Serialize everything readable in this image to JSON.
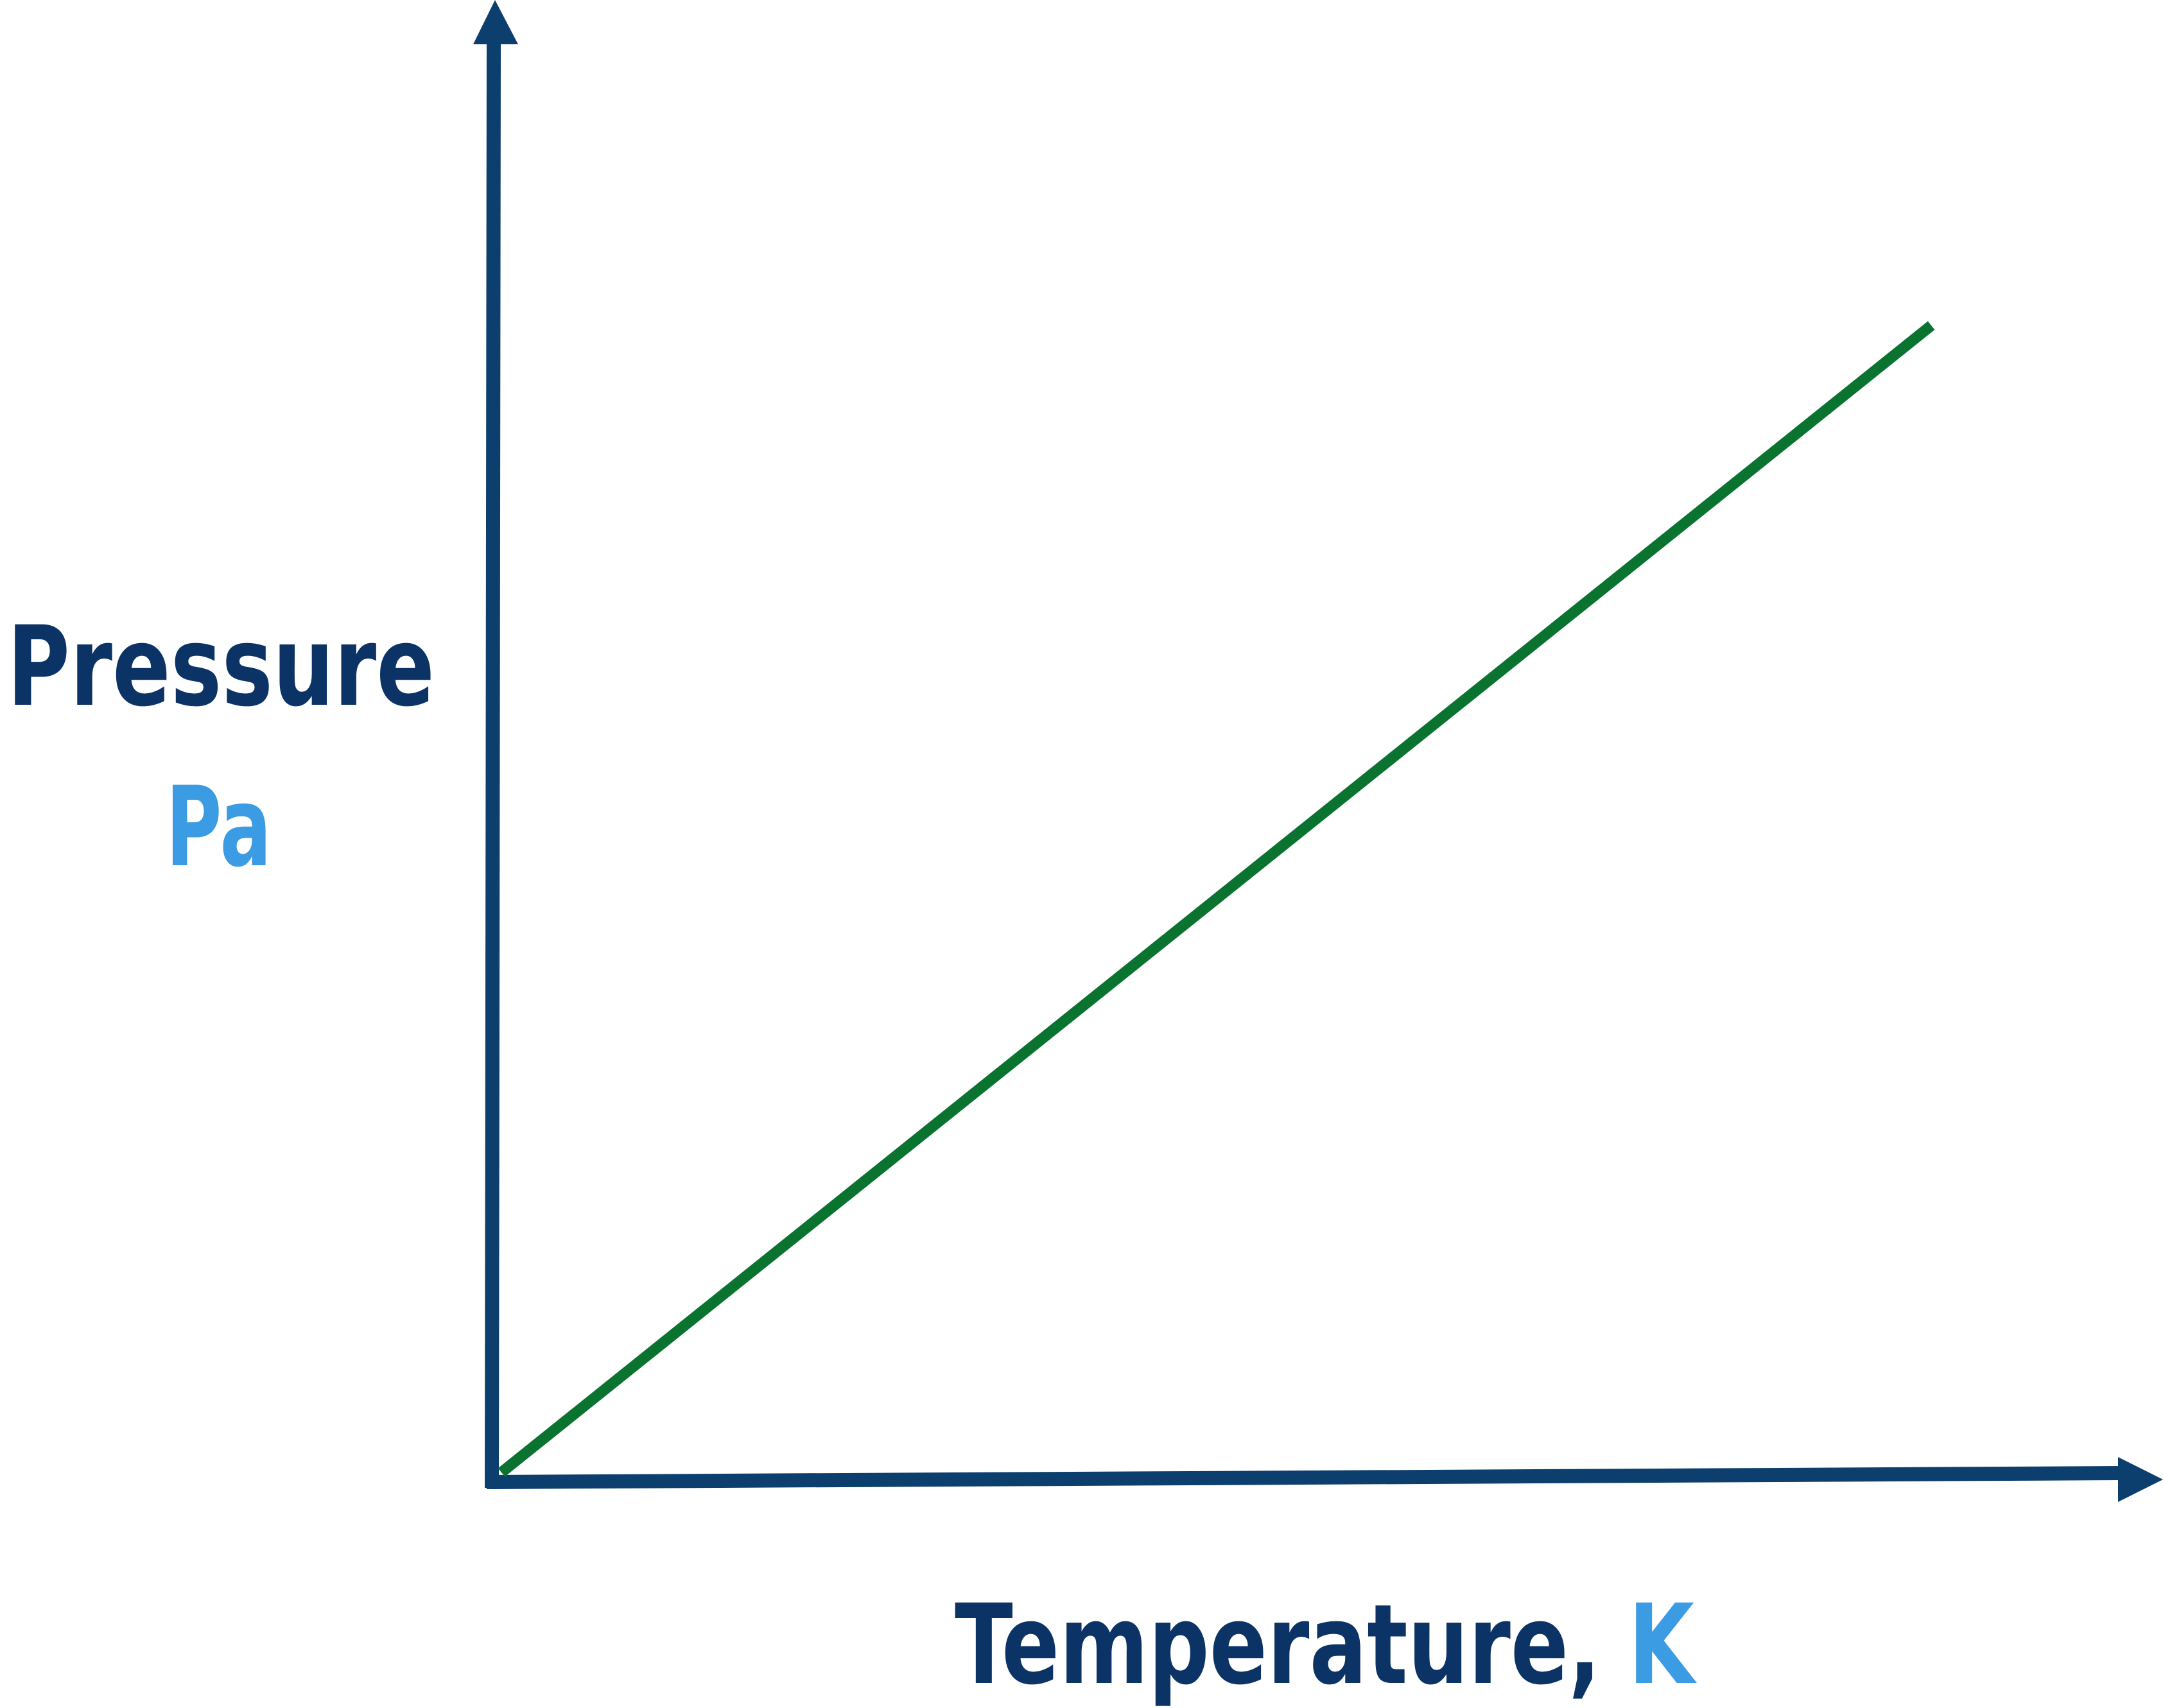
{
  "chart_data": {
    "type": "line",
    "title": "",
    "ylabel": "Pressure",
    "ylabel_unit": "Pa",
    "xlabel": "Temperature,",
    "xlabel_unit": "K",
    "grid": false,
    "ticks": false,
    "xlim": [
      0,
      1
    ],
    "ylim": [
      0,
      1
    ],
    "series": [
      {
        "points": [
          [
            0,
            0
          ],
          [
            0.885,
            0.804
          ]
        ]
      }
    ],
    "colors": {
      "axis": "#0c3f6e",
      "line": "#0a7330",
      "label": "#0c3366",
      "unit": "#3b9be3"
    }
  }
}
